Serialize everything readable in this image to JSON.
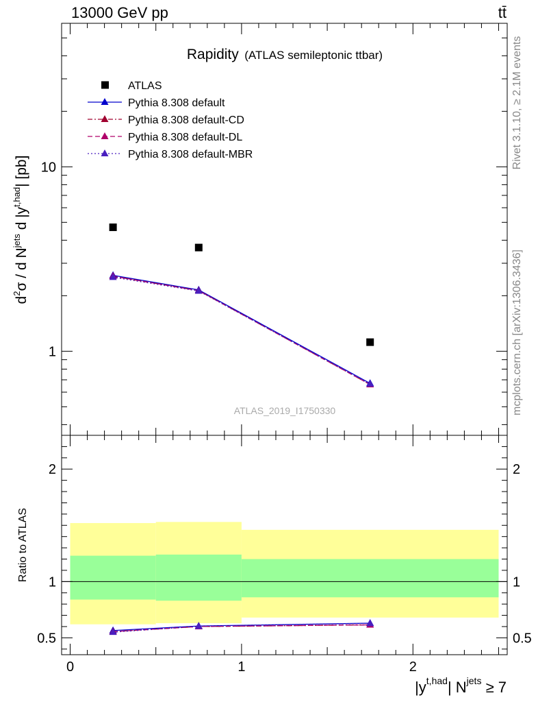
{
  "header": {
    "left_label": "13000 GeV pp",
    "right_label": "tt̄"
  },
  "side_labels": {
    "rivet": "Rivet 3.1.10, ≥ 2.1M events",
    "mcplots": "mcplots.cern.ch [arXiv:1306.3436]"
  },
  "chart_data": [
    {
      "panel": "main",
      "type": "scatter",
      "title": "Rapidity",
      "subtitle": "(ATLAS semileptonic ttbar)",
      "ylabel_parts": {
        "d2": "d",
        "sup2": "2",
        "sigma": "σ / d N",
        "jets": "jets",
        "mid": " d |y",
        "thad": "t,had",
        "end": "| [pb]"
      },
      "analysis_id": "ATLAS_2019_I1750330",
      "yscale": "log",
      "ylim": [
        0.35,
        60
      ],
      "xlim": [
        -0.05,
        2.55
      ],
      "y_tick_labels": [
        "1",
        "10"
      ],
      "legend_position": "top-left",
      "x": [
        0.25,
        0.75,
        1.75
      ],
      "series": [
        {
          "name": "ATLAS",
          "marker": "square",
          "color": "#000000",
          "values": [
            4.7,
            3.65,
            1.12
          ]
        },
        {
          "name": "Pythia 8.308 default",
          "marker": "triangle",
          "color": "#0000cc",
          "dash": "solid",
          "values": [
            2.58,
            2.15,
            0.67
          ]
        },
        {
          "name": "Pythia 8.308 default-CD",
          "marker": "triangle",
          "color": "#a0002f",
          "dash": "dashdot",
          "values": [
            2.55,
            2.13,
            0.66
          ]
        },
        {
          "name": "Pythia 8.308 default-DL",
          "marker": "triangle",
          "color": "#b0006a",
          "dash": "dashed",
          "values": [
            2.55,
            2.13,
            0.66
          ]
        },
        {
          "name": "Pythia 8.308 default-MBR",
          "marker": "triangle",
          "color": "#4a1fbf",
          "dash": "dotted",
          "values": [
            2.52,
            2.12,
            0.665
          ]
        }
      ]
    },
    {
      "panel": "ratio",
      "type": "line",
      "ylabel": "Ratio to ATLAS",
      "ylim": [
        0.35,
        2.3
      ],
      "xlim": [
        -0.05,
        2.55
      ],
      "xlabel_parts": {
        "pre": "|y",
        "thad": "t,had",
        "mid": "| N",
        "jets": "jets",
        "end": " ≥ 7"
      },
      "x_tick_labels": [
        "0",
        "1",
        "2"
      ],
      "y_tick_labels": [
        "0.5",
        "1",
        "2"
      ],
      "bin_edges": [
        0,
        0.5,
        1.0,
        2.5
      ],
      "band_yellow": [
        [
          0.62,
          1.52
        ],
        [
          0.63,
          1.53
        ],
        [
          0.68,
          1.46
        ]
      ],
      "band_green": [
        [
          0.84,
          1.23
        ],
        [
          0.83,
          1.24
        ],
        [
          0.86,
          1.2
        ]
      ],
      "x": [
        0.25,
        0.75,
        1.75
      ],
      "series": [
        {
          "name": "Pythia 8.308 default",
          "color": "#0000cc",
          "dash": "solid",
          "values": [
            0.565,
            0.605,
            0.63
          ]
        },
        {
          "name": "Pythia 8.308 default-CD",
          "color": "#a0002f",
          "dash": "dashdot",
          "values": [
            0.555,
            0.6,
            0.615
          ]
        },
        {
          "name": "Pythia 8.308 default-DL",
          "color": "#b0006a",
          "dash": "dashed",
          "values": [
            0.555,
            0.6,
            0.615
          ]
        },
        {
          "name": "Pythia 8.308 default-MBR",
          "color": "#4a1fbf",
          "dash": "dotted",
          "values": [
            0.55,
            0.603,
            0.628
          ]
        }
      ]
    }
  ]
}
